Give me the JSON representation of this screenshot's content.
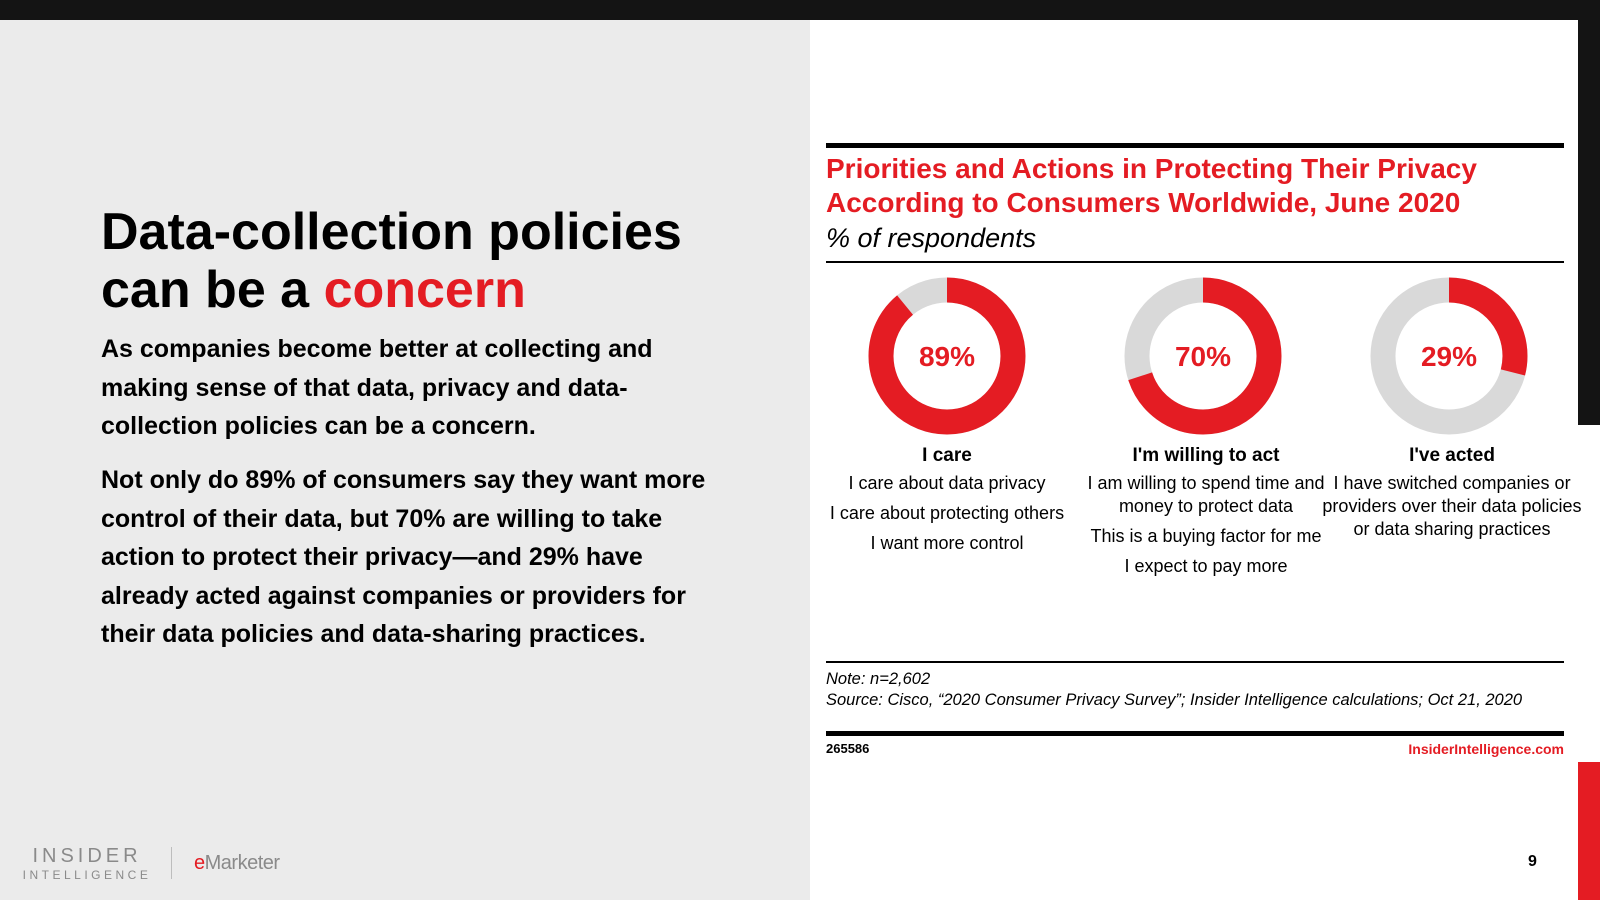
{
  "slide": {
    "headline_main": "Data-collection policies can be a ",
    "headline_accent": "concern",
    "paragraph_1": "As companies become better at collecting and making sense of that data, privacy and data-collection policies can be a concern.",
    "paragraph_2": "Not only do 89% of consumers say they want more control of their data, but 70% are willing to take action to protect their privacy—and 29% have already acted against companies or providers for their data policies and data-sharing practices.",
    "page_number": "9"
  },
  "branding": {
    "insider_line1": "INSIDER",
    "insider_line2": "INTELLIGENCE",
    "emarketer_e": "e",
    "emarketer_rest": "Marketer",
    "site": "InsiderIntelligence.com"
  },
  "chart_data": {
    "type": "pie",
    "variant": "donut",
    "title": "Priorities and Actions in Protecting Their Privacy According to Consumers Worldwide, June 2020",
    "subtitle": "% of respondents",
    "categories": [
      "I care",
      "I'm willing to act",
      "I've acted"
    ],
    "values": [
      89,
      70,
      29
    ],
    "value_labels": [
      "89%",
      "70%",
      "29%"
    ],
    "descriptions": [
      [
        "I care about data privacy",
        "I care about protecting others",
        "I want more control"
      ],
      [
        "I am willing to spend time and money to protect data",
        "This is a buying factor for me",
        "I expect to pay more"
      ],
      [
        "I have switched companies or providers over their data policies or data sharing practices"
      ]
    ],
    "colors": {
      "value": "#e41c23",
      "remainder": "#d9d9d9"
    },
    "note": "Note: n=2,602",
    "source": "Source: Cisco, “2020 Consumer Privacy Survey”; Insider Intelligence calculations; Oct 21, 2020",
    "chart_id": "265586"
  }
}
